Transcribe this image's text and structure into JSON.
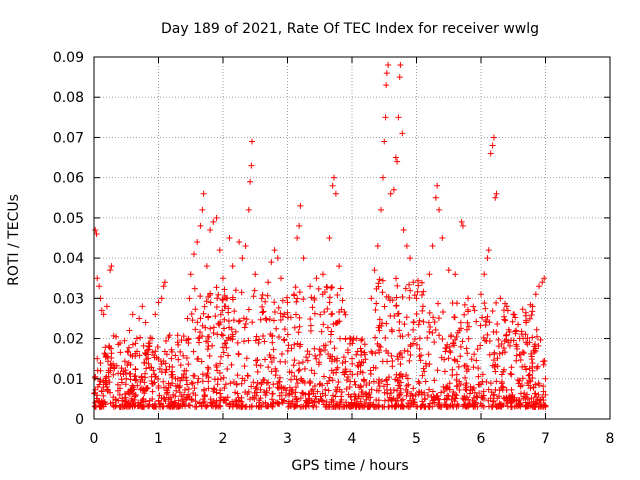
{
  "chart_data": {
    "type": "scatter",
    "title": "Day 189 of 2021, Rate Of TEC Index for receiver wwlg",
    "xlabel": "GPS time / hours",
    "ylabel": "ROTI / TECUs",
    "xlim": [
      0,
      8
    ],
    "ylim": [
      0,
      0.09
    ],
    "x_ticks": [
      0,
      1,
      2,
      3,
      4,
      5,
      6,
      7,
      8
    ],
    "y_ticks": [
      0,
      0.01,
      0.02,
      0.03,
      0.04,
      0.05,
      0.06,
      0.07,
      0.08,
      0.09
    ],
    "x_tick_labels": [
      "0",
      "1",
      "2",
      "3",
      "4",
      "5",
      "6",
      "7",
      "8"
    ],
    "y_tick_labels": [
      "0",
      "0.01",
      "0.02",
      "0.03",
      "0.04",
      "0.05",
      "0.06",
      "0.07",
      "0.08",
      "0.09"
    ],
    "grid": true,
    "marker": "+",
    "color": "#ff0000",
    "series": [
      {
        "name": "ROTI",
        "note": "Dense scatter of several thousand points from 0 to ~7 h; values approximated (baseline cloud ~0.003-0.02 with sparse spikes).",
        "points": [
          [
            0.02,
            0.047
          ],
          [
            0.04,
            0.046
          ],
          [
            0.05,
            0.035
          ],
          [
            0.08,
            0.033
          ],
          [
            0.1,
            0.03
          ],
          [
            0.12,
            0.027
          ],
          [
            0.15,
            0.026
          ],
          [
            0.2,
            0.028
          ],
          [
            0.25,
            0.037
          ],
          [
            0.27,
            0.038
          ],
          [
            0.05,
            0.015
          ],
          [
            0.1,
            0.012
          ],
          [
            0.2,
            0.008
          ],
          [
            0.3,
            0.011
          ],
          [
            0.4,
            0.006
          ],
          [
            0.5,
            0.01
          ],
          [
            0.55,
            0.022
          ],
          [
            0.6,
            0.026
          ],
          [
            0.7,
            0.025
          ],
          [
            0.75,
            0.028
          ],
          [
            0.8,
            0.024
          ],
          [
            0.85,
            0.018
          ],
          [
            0.9,
            0.02
          ],
          [
            0.95,
            0.026
          ],
          [
            1.0,
            0.029
          ],
          [
            1.05,
            0.03
          ],
          [
            1.08,
            0.033
          ],
          [
            1.1,
            0.034
          ],
          [
            1.2,
            0.015
          ],
          [
            1.3,
            0.01
          ],
          [
            1.4,
            0.012
          ],
          [
            1.45,
            0.025
          ],
          [
            1.48,
            0.03
          ],
          [
            1.5,
            0.036
          ],
          [
            1.55,
            0.041
          ],
          [
            1.6,
            0.044
          ],
          [
            1.65,
            0.048
          ],
          [
            1.68,
            0.052
          ],
          [
            1.7,
            0.056
          ],
          [
            1.75,
            0.038
          ],
          [
            1.8,
            0.047
          ],
          [
            1.85,
            0.049
          ],
          [
            1.9,
            0.05
          ],
          [
            1.95,
            0.042
          ],
          [
            2.0,
            0.035
          ],
          [
            2.05,
            0.03
          ],
          [
            2.1,
            0.045
          ],
          [
            2.15,
            0.038
          ],
          [
            2.2,
            0.032
          ],
          [
            2.25,
            0.044
          ],
          [
            2.3,
            0.04
          ],
          [
            2.35,
            0.043
          ],
          [
            2.4,
            0.052
          ],
          [
            2.42,
            0.059
          ],
          [
            2.44,
            0.063
          ],
          [
            2.45,
            0.069
          ],
          [
            2.5,
            0.036
          ],
          [
            2.6,
            0.03
          ],
          [
            2.7,
            0.034
          ],
          [
            2.75,
            0.039
          ],
          [
            2.8,
            0.042
          ],
          [
            2.85,
            0.04
          ],
          [
            2.9,
            0.035
          ],
          [
            2.95,
            0.026
          ],
          [
            3.0,
            0.029
          ],
          [
            3.1,
            0.031
          ],
          [
            3.15,
            0.045
          ],
          [
            3.18,
            0.048
          ],
          [
            3.2,
            0.053
          ],
          [
            3.25,
            0.04
          ],
          [
            3.35,
            0.033
          ],
          [
            3.45,
            0.035
          ],
          [
            3.55,
            0.036
          ],
          [
            3.65,
            0.045
          ],
          [
            3.7,
            0.058
          ],
          [
            3.72,
            0.06
          ],
          [
            3.75,
            0.056
          ],
          [
            3.8,
            0.038
          ],
          [
            3.9,
            0.02
          ],
          [
            4.0,
            0.015
          ],
          [
            4.1,
            0.013
          ],
          [
            4.2,
            0.016
          ],
          [
            4.3,
            0.03
          ],
          [
            4.35,
            0.037
          ],
          [
            4.4,
            0.043
          ],
          [
            4.45,
            0.052
          ],
          [
            4.48,
            0.06
          ],
          [
            4.5,
            0.069
          ],
          [
            4.52,
            0.075
          ],
          [
            4.53,
            0.083
          ],
          [
            4.54,
            0.086
          ],
          [
            4.56,
            0.088
          ],
          [
            4.6,
            0.056
          ],
          [
            4.65,
            0.057
          ],
          [
            4.68,
            0.065
          ],
          [
            4.7,
            0.064
          ],
          [
            4.72,
            0.075
          ],
          [
            4.74,
            0.085
          ],
          [
            4.75,
            0.088
          ],
          [
            4.78,
            0.071
          ],
          [
            4.8,
            0.047
          ],
          [
            4.85,
            0.043
          ],
          [
            4.9,
            0.04
          ],
          [
            4.95,
            0.034
          ],
          [
            5.0,
            0.03
          ],
          [
            5.1,
            0.028
          ],
          [
            5.2,
            0.036
          ],
          [
            5.25,
            0.043
          ],
          [
            5.3,
            0.055
          ],
          [
            5.32,
            0.058
          ],
          [
            5.35,
            0.052
          ],
          [
            5.4,
            0.045
          ],
          [
            5.5,
            0.037
          ],
          [
            5.6,
            0.036
          ],
          [
            5.7,
            0.049
          ],
          [
            5.72,
            0.048
          ],
          [
            5.8,
            0.03
          ],
          [
            5.9,
            0.027
          ],
          [
            6.0,
            0.031
          ],
          [
            6.05,
            0.036
          ],
          [
            6.1,
            0.04
          ],
          [
            6.12,
            0.042
          ],
          [
            6.15,
            0.066
          ],
          [
            6.18,
            0.068
          ],
          [
            6.2,
            0.07
          ],
          [
            6.22,
            0.055
          ],
          [
            6.24,
            0.056
          ],
          [
            6.3,
            0.03
          ],
          [
            6.4,
            0.028
          ],
          [
            6.5,
            0.026
          ],
          [
            6.6,
            0.02
          ],
          [
            6.7,
            0.024
          ],
          [
            6.8,
            0.028
          ],
          [
            6.85,
            0.031
          ],
          [
            6.9,
            0.033
          ],
          [
            6.95,
            0.034
          ],
          [
            6.98,
            0.035
          ],
          [
            7.0,
            0.01
          ],
          [
            7.0,
            0.006
          ],
          [
            7.0,
            0.003
          ]
        ]
      }
    ]
  }
}
